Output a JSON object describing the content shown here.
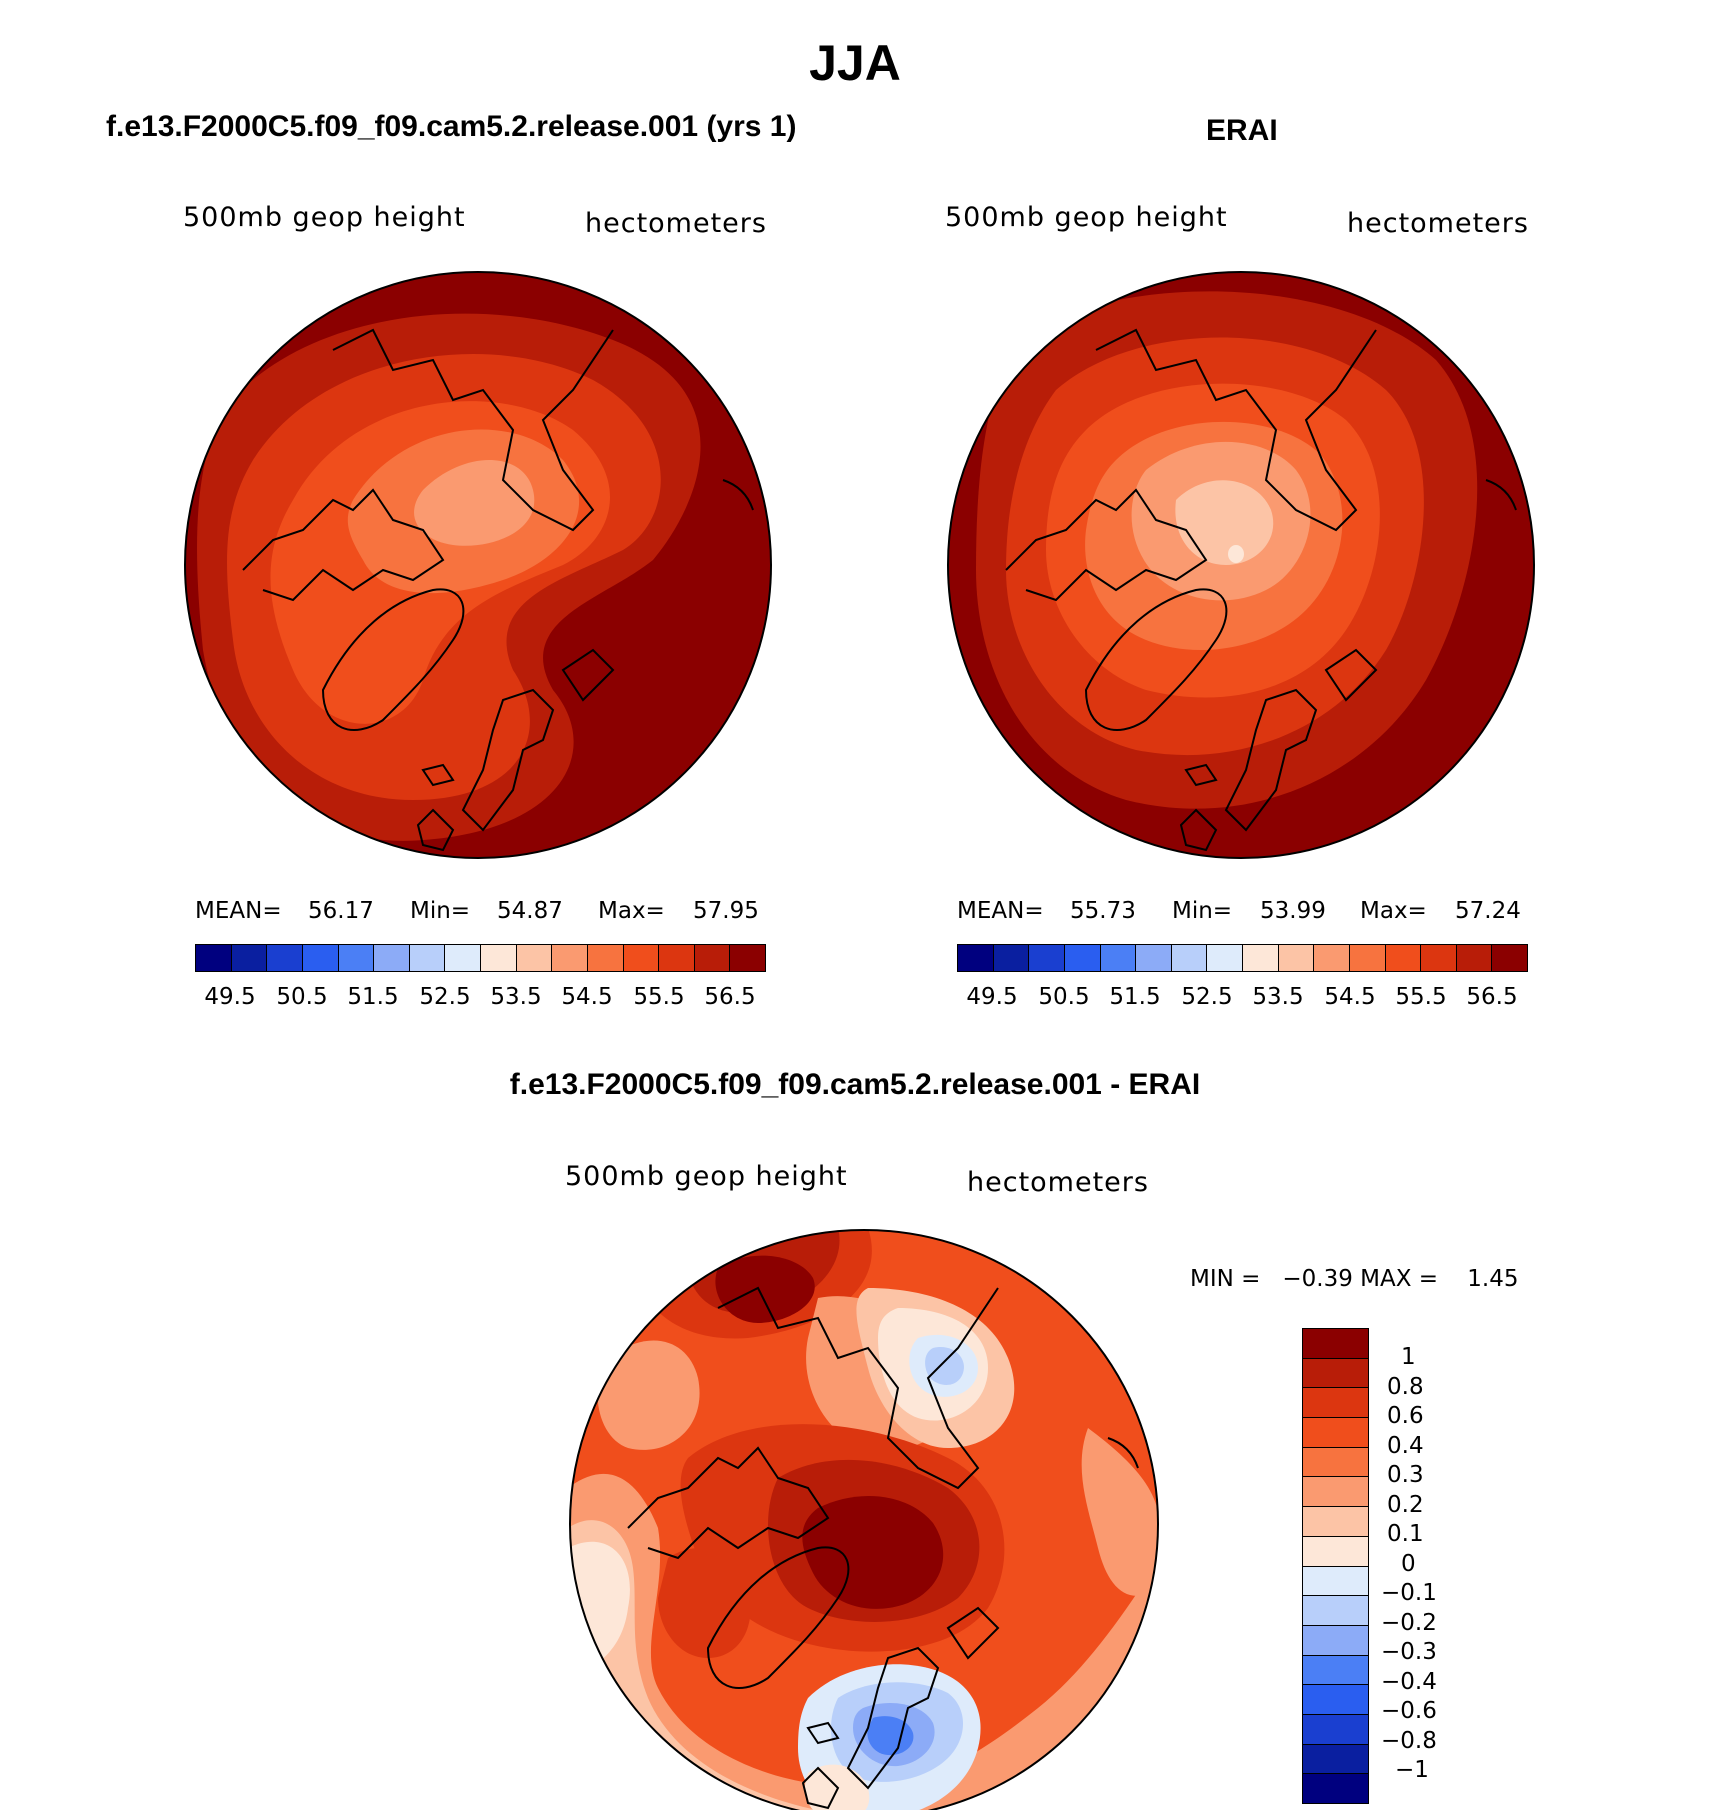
{
  "title": "JJA",
  "colors": {
    "abs": [
      "#00007f",
      "#0a1fa0",
      "#1a3fd0",
      "#2a5ef0",
      "#4b7ff5",
      "#8cabf7",
      "#b8cffa",
      "#deebfb",
      "#fde7d8",
      "#fcc4a6",
      "#fa9a70",
      "#f7733f",
      "#f04e1c",
      "#dc3610",
      "#b81d08",
      "#8b0000"
    ],
    "diff": [
      "#8b0000",
      "#b81d08",
      "#dc3610",
      "#f04e1c",
      "#f7733f",
      "#fa9a70",
      "#fcc4a6",
      "#fde7d8",
      "#deebfb",
      "#b8cffa",
      "#8cabf7",
      "#4b7ff5",
      "#2a5ef0",
      "#1a3fd0",
      "#0a1fa0",
      "#00007f"
    ]
  },
  "panels": {
    "model": {
      "title": "f.e13.F2000C5.f09_f09.cam5.2.release.001 (yrs 1)",
      "variable": "500mb geop height",
      "units": "hectometers",
      "mean_label": "MEAN=",
      "mean": "56.17",
      "min_label": "Min=",
      "min": "54.87",
      "max_label": "Max=",
      "max": "57.95",
      "ticks": [
        "49.5",
        "50.5",
        "51.5",
        "52.5",
        "53.5",
        "54.5",
        "55.5",
        "56.5"
      ]
    },
    "obs": {
      "title": "ERAI",
      "variable": "500mb geop height",
      "units": "hectometers",
      "mean_label": "MEAN=",
      "mean": "55.73",
      "min_label": "Min=",
      "min": "53.99",
      "max_label": "Max=",
      "max": "57.24",
      "ticks": [
        "49.5",
        "50.5",
        "51.5",
        "52.5",
        "53.5",
        "54.5",
        "55.5",
        "56.5"
      ]
    },
    "diff": {
      "title": "f.e13.F2000C5.f09_f09.cam5.2.release.001 - ERAI",
      "variable": "500mb geop height",
      "units": "hectometers",
      "minmax_text": "MIN =   −0.39 MAX =    1.45",
      "ticks": [
        "1",
        "0.8",
        "0.6",
        "0.4",
        "0.3",
        "0.2",
        "0.1",
        "0",
        "−0.1",
        "−0.2",
        "−0.3",
        "−0.4",
        "−0.6",
        "−0.8",
        "−1"
      ]
    }
  }
}
